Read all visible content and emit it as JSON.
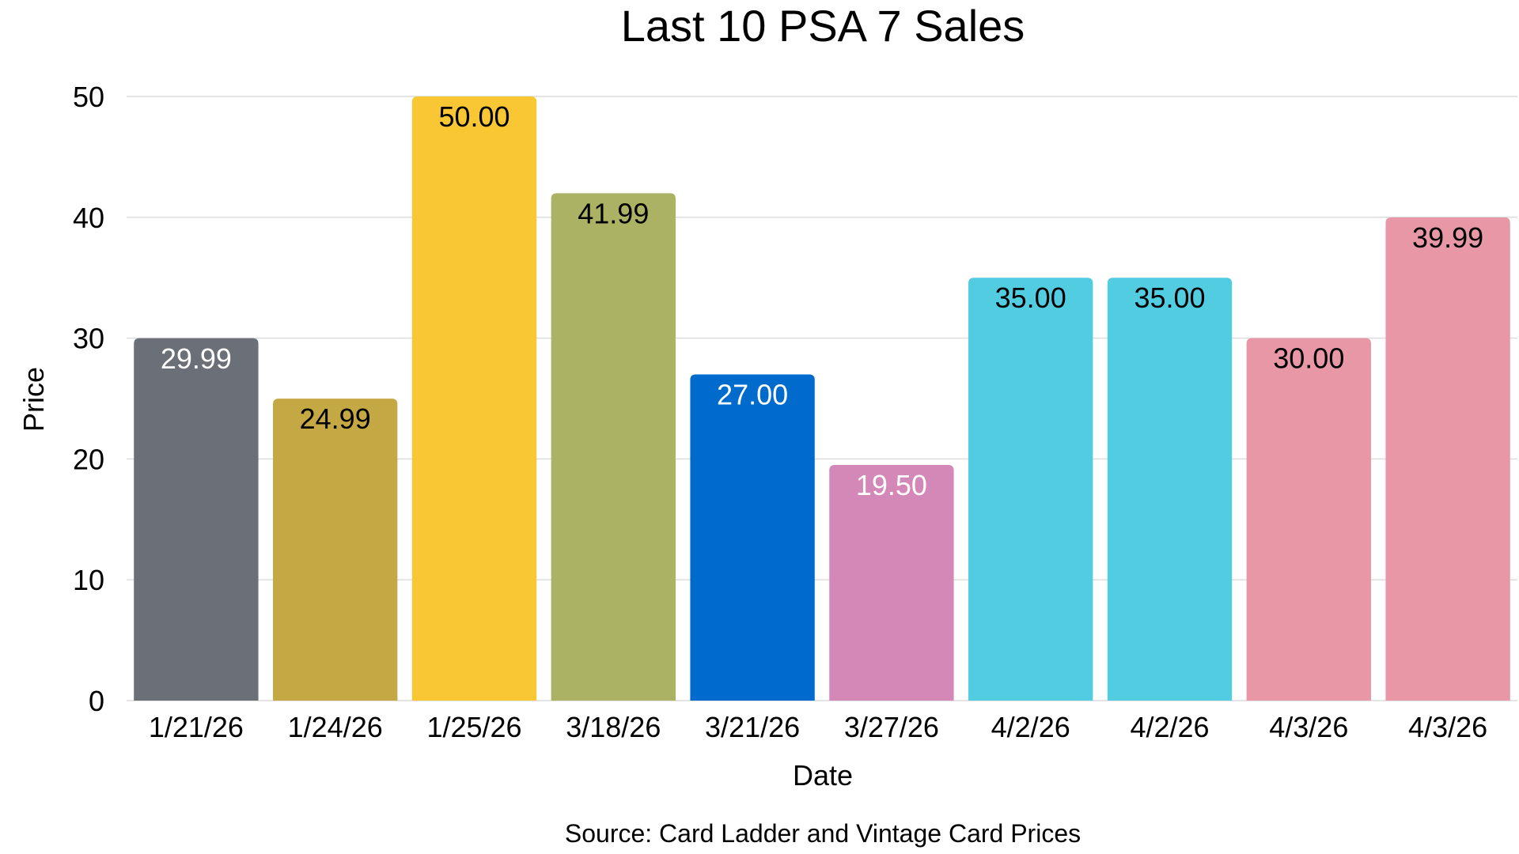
{
  "chart_data": {
    "type": "bar",
    "title": "Last 10 PSA 7 Sales",
    "xlabel": "Date",
    "ylabel": "Price",
    "ylim": [
      0,
      50
    ],
    "yticks": [
      0,
      10,
      20,
      30,
      40,
      50
    ],
    "grid": true,
    "categories": [
      "1/21/26",
      "1/24/26",
      "1/25/26",
      "3/18/26",
      "3/21/26",
      "3/27/26",
      "4/2/26",
      "4/2/26",
      "4/3/26",
      "4/3/26"
    ],
    "values": [
      29.99,
      24.99,
      50.0,
      41.99,
      27.0,
      19.5,
      35.0,
      35.0,
      30.0,
      39.99
    ],
    "value_labels": [
      "29.99",
      "24.99",
      "50.00",
      "41.99",
      "27.00",
      "19.50",
      "35.00",
      "35.00",
      "30.00",
      "39.99"
    ],
    "bar_colors": [
      "#6b6f78",
      "#c4a844",
      "#f9c733",
      "#acb264",
      "#006bcc",
      "#d488b8",
      "#52cce0",
      "#52cce0",
      "#e897a6",
      "#e897a6"
    ],
    "label_colors": [
      "#ffffff",
      "#000000",
      "#000000",
      "#000000",
      "#ffffff",
      "#ffffff",
      "#000000",
      "#000000",
      "#000000",
      "#000000"
    ],
    "source_note": "Source: Card Ladder and Vintage Card Prices"
  }
}
